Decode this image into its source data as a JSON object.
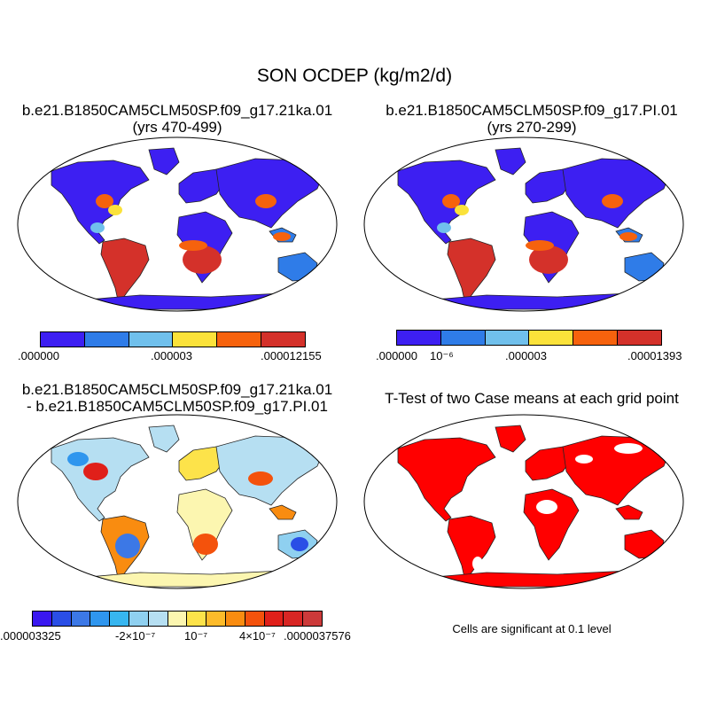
{
  "title": "SON OCDEP (kg/m2/d)",
  "panels": {
    "case": {
      "title_line1": "b.e21.B1850CAM5CLM50SP.f09_g17.21ka.01",
      "title_line2": "(yrs 470-499)",
      "colorbar": {
        "colors": [
          "#3d1ff2",
          "#2f7ce8",
          "#70c0ec",
          "#fbe23a",
          "#f6620d",
          "#d4312a"
        ],
        "labels": [
          ".000000",
          ".000003",
          ".000012155"
        ]
      }
    },
    "control": {
      "title_line1": "b.e21.B1850CAM5CLM50SP.f09_g17.PI.01",
      "title_line2": "(yrs 270-299)",
      "colorbar": {
        "colors": [
          "#3d1ff2",
          "#2f7ce8",
          "#70c0ec",
          "#fbe23a",
          "#f6620d",
          "#d4312a"
        ],
        "labels": [
          ".000000",
          "10⁻⁶",
          ".000003",
          ".00001393"
        ]
      }
    },
    "difference": {
      "title_line1": "b.e21.B1850CAM5CLM50SP.f09_g17.21ka.01",
      "title_line2": "- b.e21.B1850CAM5CLM50SP.f09_g17.PI.01",
      "colorbar": {
        "colors": [
          "#3a18f0",
          "#2a4ee6",
          "#3c78e6",
          "#2f96ee",
          "#37b6f0",
          "#8fd0f0",
          "#b6dff2",
          "#fcf6b0",
          "#fde34a",
          "#fdbb2a",
          "#f98c10",
          "#f4520c",
          "#e0201a",
          "#d82624",
          "#cc3a3a"
        ],
        "labels": [
          ".000003325",
          "-2×10⁻⁷",
          "10⁻⁷",
          "4×10⁻⁷",
          ".0000037576"
        ]
      }
    },
    "ttest": {
      "title": "T-Test of two Case means at each grid point",
      "note": "Cells are significant at 0.1 level"
    }
  },
  "palette": {
    "ocean": "#ffffff",
    "coast": "#222222",
    "ttest_red": "#ff0000"
  }
}
